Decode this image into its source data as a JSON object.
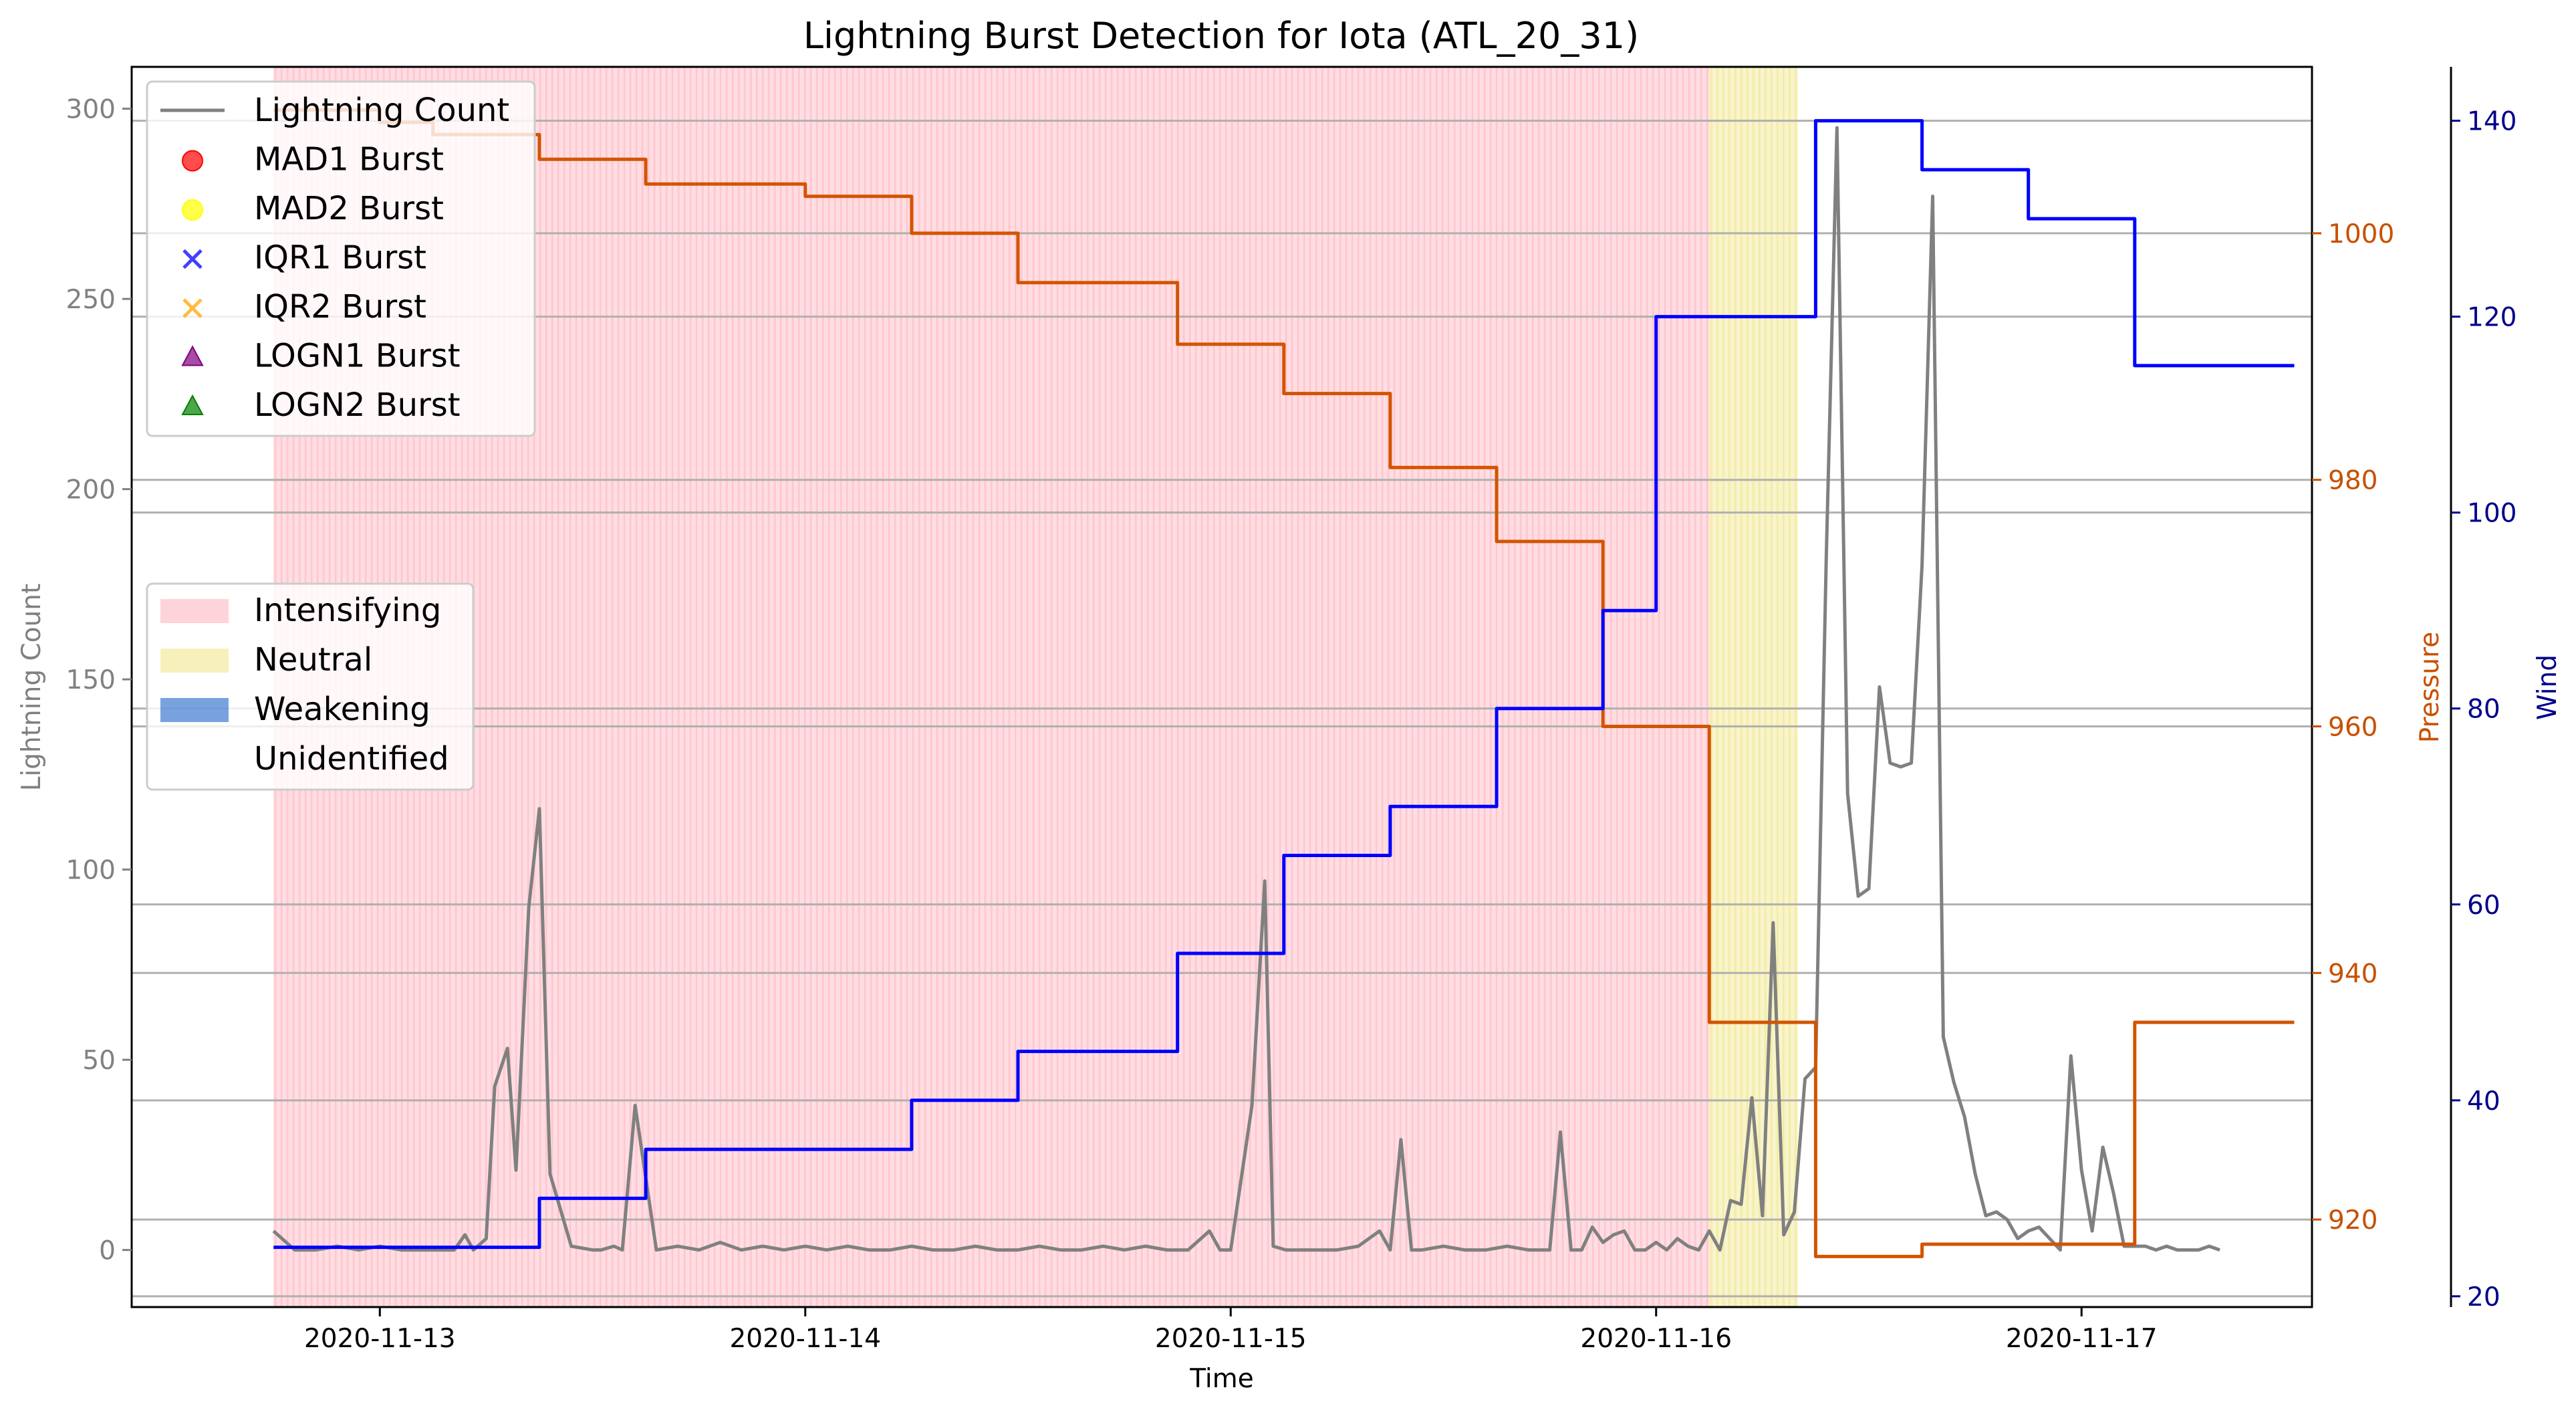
{
  "chart_data": {
    "type": "line",
    "title": "Lightning Burst Detection for Iota (ATL_20_31)",
    "xlabel": "Time",
    "ylabel_left": "Lightning Count",
    "ylabel_pressure": "Pressure",
    "ylabel_wind": "Wind",
    "x_ticks": [
      "2020-11-13",
      "2020-11-14",
      "2020-11-15",
      "2020-11-16",
      "2020-11-17"
    ],
    "y_left_ticks": [
      0,
      50,
      100,
      150,
      200,
      250,
      300
    ],
    "y_pressure_ticks": [
      920,
      940,
      960,
      980,
      1000
    ],
    "y_wind_ticks": [
      20,
      40,
      60,
      80,
      100,
      120,
      140
    ],
    "ylim_left": [
      -15,
      311
    ],
    "ylim_pressure": [
      912.9,
      1013.5
    ],
    "ylim_wind": [
      18.9,
      145.5
    ],
    "xlim_days": [
      "2020-11-12 10:00",
      "2020-11-17 13:00"
    ],
    "colors": {
      "lightning": "#808080",
      "pressure": "#d35400",
      "wind": "#0000ff",
      "intensifying": "#ffb6c1",
      "neutral": "#f0e68c",
      "weakening": "#1e64c8",
      "pressure_axis": "#c85000",
      "wind_axis": "#00008b",
      "left_axis": "#808080"
    },
    "legend_series": [
      {
        "label": "Lightning Count",
        "marker": "line",
        "color": "#808080"
      },
      {
        "label": "MAD1 Burst",
        "marker": "circle",
        "color": "#ff0000"
      },
      {
        "label": "MAD2 Burst",
        "marker": "circle",
        "color": "#ffff00"
      },
      {
        "label": "IQR1 Burst",
        "marker": "x",
        "color": "#0000ff"
      },
      {
        "label": "IQR2 Burst",
        "marker": "x",
        "color": "#ffa500"
      },
      {
        "label": "LOGN1 Burst",
        "marker": "triangle",
        "color": "#800080"
      },
      {
        "label": "LOGN2 Burst",
        "marker": "triangle",
        "color": "#008000"
      }
    ],
    "legend_phases": [
      {
        "label": "Intensifying",
        "color": "#ffb6c1"
      },
      {
        "label": "Neutral",
        "color": "#f0e68c"
      },
      {
        "label": "Weakening",
        "color": "#1e64c8"
      },
      {
        "label": "Unidentified",
        "color": "#ffffff"
      }
    ],
    "phase_spans": [
      {
        "phase": "Intensifying",
        "start_day": 12.75,
        "end_day": 16.125
      },
      {
        "phase": "Neutral",
        "start_day": 16.125,
        "end_day": 16.333
      }
    ],
    "lightning_series": {
      "name": "Lightning Count",
      "x_days": [
        12.75,
        12.8,
        12.85,
        12.9,
        12.95,
        13.0,
        13.05,
        13.1,
        13.15,
        13.175,
        13.2,
        13.22,
        13.25,
        13.27,
        13.3,
        13.32,
        13.35,
        13.375,
        13.4,
        13.45,
        13.5,
        13.52,
        13.55,
        13.57,
        13.6,
        13.65,
        13.7,
        13.75,
        13.8,
        13.85,
        13.9,
        13.95,
        14.0,
        14.05,
        14.1,
        14.15,
        14.2,
        14.25,
        14.3,
        14.35,
        14.4,
        14.45,
        14.5,
        14.55,
        14.6,
        14.65,
        14.7,
        14.75,
        14.8,
        14.85,
        14.9,
        14.95,
        14.975,
        15.0,
        15.05,
        15.08,
        15.1,
        15.13,
        15.15,
        15.2,
        15.25,
        15.3,
        15.35,
        15.375,
        15.4,
        15.425,
        15.45,
        15.5,
        15.55,
        15.6,
        15.65,
        15.7,
        15.75,
        15.775,
        15.8,
        15.825,
        15.85,
        15.875,
        15.9,
        15.925,
        15.95,
        15.975,
        16.0,
        16.025,
        16.05,
        16.075,
        16.1,
        16.125,
        16.15,
        16.175,
        16.2,
        16.225,
        16.25,
        16.275,
        16.3,
        16.325,
        16.35,
        16.375,
        16.4,
        16.425,
        16.45,
        16.475,
        16.5,
        16.525,
        16.55,
        16.575,
        16.6,
        16.625,
        16.65,
        16.675,
        16.7,
        16.725,
        16.75,
        16.775,
        16.8,
        16.825,
        16.85,
        16.875,
        16.9,
        16.925,
        16.95,
        16.975,
        17.0,
        17.025,
        17.05,
        17.075,
        17.1,
        17.125,
        17.15,
        17.175,
        17.2,
        17.225,
        17.25,
        17.275,
        17.3,
        17.325
      ],
      "values": [
        5,
        0,
        0,
        1,
        0,
        1,
        0,
        0,
        0,
        0,
        4,
        0,
        3,
        43,
        53,
        21,
        90,
        116,
        20,
        1,
        0,
        0,
        1,
        0,
        38,
        0,
        1,
        0,
        2,
        0,
        1,
        0,
        1,
        0,
        1,
        0,
        0,
        1,
        0,
        0,
        1,
        0,
        0,
        1,
        0,
        0,
        1,
        0,
        1,
        0,
        0,
        5,
        0,
        0,
        38,
        97,
        1,
        0,
        0,
        0,
        0,
        1,
        5,
        0,
        29,
        0,
        0,
        1,
        0,
        0,
        1,
        0,
        0,
        31,
        0,
        0,
        6,
        2,
        4,
        5,
        0,
        0,
        2,
        0,
        3,
        1,
        0,
        5,
        0,
        13,
        12,
        40,
        9,
        86,
        4,
        10,
        45,
        48,
        182,
        295,
        120,
        93,
        95,
        148,
        128,
        127,
        128,
        180,
        277,
        56,
        44,
        35,
        20,
        9,
        10,
        8,
        3,
        5,
        6,
        3,
        0,
        51,
        21,
        5,
        27,
        15,
        1,
        1,
        1,
        0,
        1,
        0,
        0,
        0,
        1,
        0
      ]
    },
    "pressure_series": {
      "name": "Pressure",
      "steps": [
        {
          "start_day": 12.75,
          "end_day": 13.0,
          "value": 1010
        },
        {
          "start_day": 13.0,
          "end_day": 13.125,
          "value": 1009
        },
        {
          "start_day": 13.125,
          "end_day": 13.375,
          "value": 1008
        },
        {
          "start_day": 13.375,
          "end_day": 13.625,
          "value": 1006
        },
        {
          "start_day": 13.625,
          "end_day": 14.0,
          "value": 1004
        },
        {
          "start_day": 14.0,
          "end_day": 14.25,
          "value": 1003
        },
        {
          "start_day": 14.25,
          "end_day": 14.5,
          "value": 1000
        },
        {
          "start_day": 14.5,
          "end_day": 14.875,
          "value": 996
        },
        {
          "start_day": 14.875,
          "end_day": 15.125,
          "value": 991
        },
        {
          "start_day": 15.125,
          "end_day": 15.375,
          "value": 987
        },
        {
          "start_day": 15.375,
          "end_day": 15.625,
          "value": 981
        },
        {
          "start_day": 15.625,
          "end_day": 15.875,
          "value": 975
        },
        {
          "start_day": 15.875,
          "end_day": 16.125,
          "value": 960
        },
        {
          "start_day": 16.125,
          "end_day": 16.375,
          "value": 936
        },
        {
          "start_day": 16.375,
          "end_day": 16.625,
          "value": 917
        },
        {
          "start_day": 16.625,
          "end_day": 17.125,
          "value": 918
        },
        {
          "start_day": 17.125,
          "end_day": 17.5,
          "value": 936
        }
      ]
    },
    "wind_series": {
      "name": "Wind",
      "steps": [
        {
          "start_day": 12.75,
          "end_day": 13.375,
          "value": 25
        },
        {
          "start_day": 13.375,
          "end_day": 13.625,
          "value": 30
        },
        {
          "start_day": 13.625,
          "end_day": 14.25,
          "value": 35
        },
        {
          "start_day": 14.25,
          "end_day": 14.5,
          "value": 40
        },
        {
          "start_day": 14.5,
          "end_day": 14.875,
          "value": 45
        },
        {
          "start_day": 14.875,
          "end_day": 15.125,
          "value": 55
        },
        {
          "start_day": 15.125,
          "end_day": 15.375,
          "value": 65
        },
        {
          "start_day": 15.375,
          "end_day": 15.625,
          "value": 70
        },
        {
          "start_day": 15.625,
          "end_day": 15.875,
          "value": 80
        },
        {
          "start_day": 15.875,
          "end_day": 16.0,
          "value": 90
        },
        {
          "start_day": 16.0,
          "end_day": 16.375,
          "value": 120
        },
        {
          "start_day": 16.375,
          "end_day": 16.625,
          "value": 140
        },
        {
          "start_day": 16.625,
          "end_day": 16.875,
          "value": 135
        },
        {
          "start_day": 16.875,
          "end_day": 17.125,
          "value": 130
        },
        {
          "start_day": 17.125,
          "end_day": 17.5,
          "value": 115
        }
      ]
    },
    "grid": true,
    "legend_placement": "top-left and middle-left"
  }
}
